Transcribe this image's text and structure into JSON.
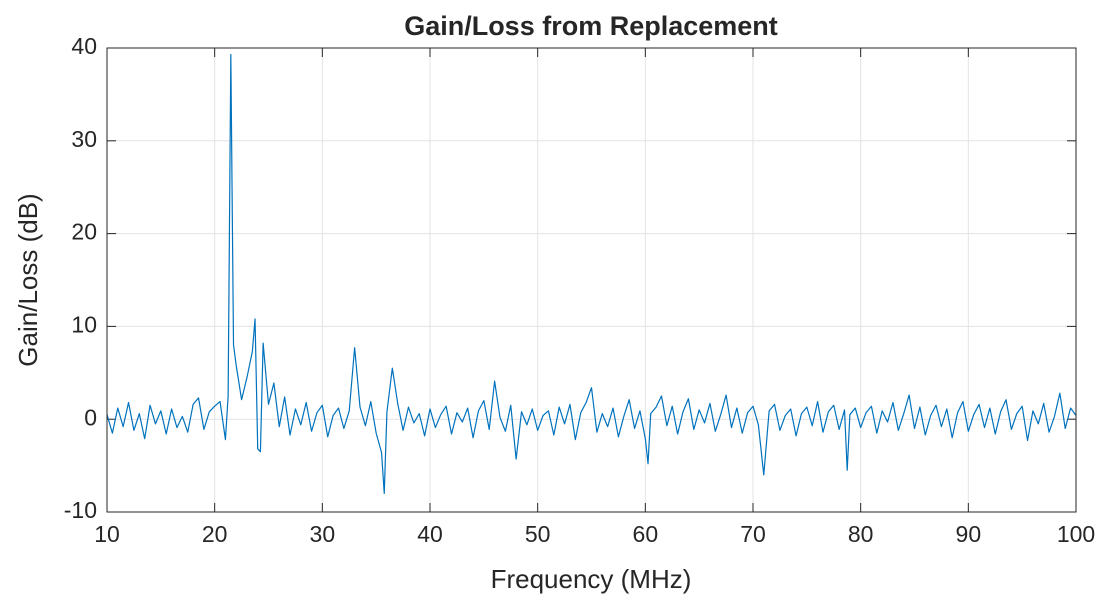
{
  "chart_data": {
    "type": "line",
    "title": "Gain/Loss from Replacement",
    "xlabel": "Frequency (MHz)",
    "ylabel": "Gain/Loss (dB)",
    "xlim": [
      10,
      100
    ],
    "ylim": [
      -10,
      40
    ],
    "xticks": [
      10,
      20,
      30,
      40,
      50,
      60,
      70,
      80,
      90,
      100
    ],
    "yticks": [
      -10,
      0,
      10,
      20,
      30,
      40
    ],
    "grid": true,
    "x": [
      10,
      10.5,
      11,
      11.5,
      12,
      12.5,
      13,
      13.5,
      14,
      14.5,
      15,
      15.5,
      16,
      16.5,
      17,
      17.5,
      18,
      18.5,
      19,
      19.5,
      20,
      20.5,
      21,
      21.25,
      21.5,
      21.75,
      22,
      22.5,
      23,
      23.5,
      23.75,
      24,
      24.25,
      24.5,
      25,
      25.5,
      26,
      26.5,
      27,
      27.5,
      28,
      28.5,
      29,
      29.5,
      30,
      30.5,
      31,
      31.5,
      32,
      32.5,
      33,
      33.5,
      34,
      34.5,
      35,
      35.5,
      35.75,
      36,
      36.5,
      37,
      37.5,
      38,
      38.5,
      39,
      39.5,
      40,
      40.5,
      41,
      41.5,
      42,
      42.5,
      43,
      43.5,
      44,
      44.5,
      45,
      45.5,
      46,
      46.5,
      47,
      47.5,
      48,
      48.5,
      49,
      49.5,
      50,
      50.5,
      51,
      51.5,
      52,
      52.5,
      53,
      53.5,
      54,
      54.5,
      55,
      55.5,
      56,
      56.5,
      57,
      57.5,
      58,
      58.5,
      59,
      59.5,
      60,
      60.25,
      60.5,
      61,
      61.5,
      62,
      62.5,
      63,
      63.5,
      64,
      64.5,
      65,
      65.5,
      66,
      66.5,
      67,
      67.5,
      68,
      68.5,
      69,
      69.5,
      70,
      70.5,
      71,
      71.5,
      72,
      72.5,
      73,
      73.5,
      74,
      74.5,
      75,
      75.5,
      76,
      76.5,
      77,
      77.5,
      78,
      78.5,
      78.75,
      79,
      79.5,
      80,
      80.5,
      81,
      81.5,
      82,
      82.5,
      83,
      83.5,
      84,
      84.5,
      85,
      85.5,
      86,
      86.5,
      87,
      87.5,
      88,
      88.5,
      89,
      89.5,
      90,
      90.5,
      91,
      91.5,
      92,
      92.5,
      93,
      93.5,
      94,
      94.5,
      95,
      95.5,
      96,
      96.5,
      97,
      97.5,
      98,
      98.5,
      99,
      99.5,
      100
    ],
    "series": [
      {
        "name": "Gain/Loss",
        "color": "#0072bd",
        "values": [
          0.5,
          -1.5,
          1.2,
          -0.8,
          1.8,
          -1.2,
          0.6,
          -2.1,
          1.5,
          -0.5,
          0.9,
          -1.6,
          1.1,
          -0.9,
          0.3,
          -1.4,
          1.6,
          2.3,
          -1.1,
          0.8,
          1.4,
          1.9,
          -2.2,
          2.5,
          39.3,
          8,
          5.8,
          2.1,
          4.5,
          7.3,
          10.8,
          -3.2,
          -3.5,
          8.2,
          1.6,
          3.9,
          -0.8,
          2.4,
          -1.7,
          1.1,
          -0.6,
          1.8,
          -1.3,
          0.7,
          1.5,
          -1.9,
          0.4,
          1.2,
          -1.0,
          0.9,
          7.7,
          1.3,
          -0.7,
          1.9,
          -1.5,
          -3.6,
          -8.0,
          0.8,
          5.5,
          1.7,
          -1.2,
          1.3,
          -0.4,
          0.6,
          -1.8,
          1.1,
          -0.9,
          0.5,
          1.4,
          -1.6,
          0.7,
          -0.3,
          1.2,
          -2.0,
          0.9,
          2.0,
          -1.1,
          4.1,
          0.2,
          -1.3,
          1.5,
          -4.3,
          0.8,
          -0.6,
          1.1,
          -1.2,
          0.4,
          0.9,
          -1.7,
          1.3,
          -0.5,
          1.6,
          -2.2,
          0.7,
          1.8,
          3.4,
          -1.4,
          0.6,
          -0.8,
          1.2,
          -1.9,
          0.3,
          2.1,
          -1.0,
          0.9,
          -2.1,
          -4.8,
          0.6,
          1.3,
          2.5,
          -0.7,
          1.4,
          -1.6,
          0.8,
          2.2,
          -1.1,
          1.0,
          -0.4,
          1.7,
          -1.3,
          0.5,
          2.6,
          -0.9,
          1.2,
          -1.5,
          0.7,
          1.4,
          -0.6,
          -6.0,
          0.9,
          1.6,
          -1.2,
          0.4,
          1.1,
          -1.8,
          0.6,
          1.3,
          -0.7,
          1.9,
          -1.4,
          0.8,
          1.5,
          -1.1,
          1.0,
          -5.5,
          0.5,
          1.2,
          -0.9,
          0.7,
          1.4,
          -1.5,
          0.9,
          -0.3,
          1.8,
          -1.2,
          0.6,
          2.6,
          -1.0,
          1.3,
          -1.7,
          0.4,
          1.5,
          -0.8,
          1.1,
          -2.0,
          0.7,
          1.9,
          -1.3,
          0.5,
          1.6,
          -0.9,
          1.2,
          -1.6,
          0.8,
          2.1,
          -1.1,
          0.6,
          1.4,
          -2.3,
          0.9,
          -0.5,
          1.7,
          -1.4,
          0.3,
          2.8,
          -1.0,
          1.2,
          0.4
        ]
      }
    ]
  }
}
